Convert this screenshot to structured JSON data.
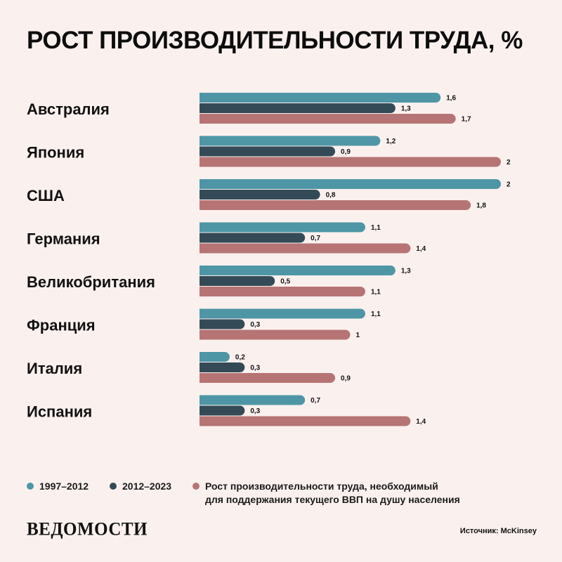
{
  "title": "РОСТ ПРОИЗВОДИТЕЛЬНОСТИ ТРУДА, %",
  "colors": {
    "background": "#faf1ef",
    "series_1": "#4e96a6",
    "series_2": "#344a57",
    "series_3": "#b77474"
  },
  "chart_data": {
    "type": "bar",
    "orientation": "horizontal",
    "title": "РОСТ ПРОИЗВОДИТЕЛЬНОСТИ ТРУДА, %",
    "categories": [
      "Австралия",
      "Япония",
      "США",
      "Германия",
      "Великобритания",
      "Франция",
      "Италия",
      "Испания"
    ],
    "series": [
      {
        "name": "1997–2012",
        "color": "#4e96a6",
        "values": [
          1.6,
          1.2,
          2,
          1.1,
          1.3,
          1.1,
          0.2,
          0.7
        ],
        "labels": [
          "1,6",
          "1,2",
          "2",
          "1,1",
          "1,3",
          "1,1",
          "0,2",
          "0,7"
        ]
      },
      {
        "name": "2012–2023",
        "color": "#344a57",
        "values": [
          1.3,
          0.9,
          0.8,
          0.7,
          0.5,
          0.3,
          0.3,
          0.3
        ],
        "labels": [
          "1,3",
          "0,9",
          "0,8",
          "0,7",
          "0,5",
          "0,3",
          "0,3",
          "0,3"
        ]
      },
      {
        "name": "Рост производительности труда, необходимый для поддержания текущего ВВП на душу населения",
        "color": "#b77474",
        "values": [
          1.7,
          2,
          1.8,
          1.4,
          1.1,
          1,
          0.9,
          1.4
        ],
        "labels": [
          "1,7",
          "2",
          "1,8",
          "1,4",
          "1,1",
          "1",
          "0,9",
          "1,4"
        ]
      }
    ],
    "xlim": [
      0,
      2
    ],
    "grid": false,
    "legend_position": "bottom"
  },
  "legend": {
    "item_1": "1997–2012",
    "item_2": "2012–2023",
    "item_3": "Рост производительности труда, необходимый\nдля поддержания текущего ВВП на душу населения"
  },
  "footer": {
    "logo": "ВЕДОМОСТИ",
    "source": "Источник: McKinsey"
  }
}
